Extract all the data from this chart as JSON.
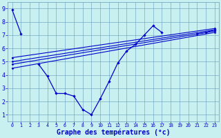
{
  "bg_color": "#c8f0f0",
  "grid_color": "#6699bb",
  "line_color": "#0000cc",
  "xlabel": "Graphe des températures (°c)",
  "xlabel_color": "#0000cc",
  "xlim": [
    -0.5,
    23.5
  ],
  "ylim": [
    0.5,
    9.5
  ],
  "xticks": [
    0,
    1,
    2,
    3,
    4,
    5,
    6,
    7,
    8,
    9,
    10,
    11,
    12,
    13,
    14,
    15,
    16,
    17,
    18,
    19,
    20,
    21,
    22,
    23
  ],
  "yticks": [
    1,
    2,
    3,
    4,
    5,
    6,
    7,
    8,
    9
  ],
  "series0": {
    "segments": [
      {
        "x": [
          0,
          1
        ],
        "y": [
          8.9,
          7.1
        ]
      },
      {
        "x": [
          3,
          4,
          5,
          6,
          7,
          8,
          9,
          10,
          11,
          12,
          13,
          14,
          15,
          16,
          17
        ],
        "y": [
          4.8,
          3.9,
          2.6,
          2.6,
          2.4,
          1.4,
          1.0,
          2.2,
          3.5,
          4.9,
          5.8,
          6.3,
          7.0,
          7.7,
          7.2
        ]
      },
      {
        "x": [
          21,
          22,
          23
        ],
        "y": [
          7.1,
          7.2,
          7.4
        ]
      }
    ]
  },
  "straight_lines": [
    {
      "x": [
        0,
        23
      ],
      "y": [
        4.8,
        7.3
      ]
    },
    {
      "x": [
        0,
        23
      ],
      "y": [
        5.0,
        7.4
      ]
    },
    {
      "x": [
        0,
        23
      ],
      "y": [
        5.3,
        7.5
      ]
    },
    {
      "x": [
        0,
        23
      ],
      "y": [
        4.5,
        7.2
      ]
    }
  ]
}
